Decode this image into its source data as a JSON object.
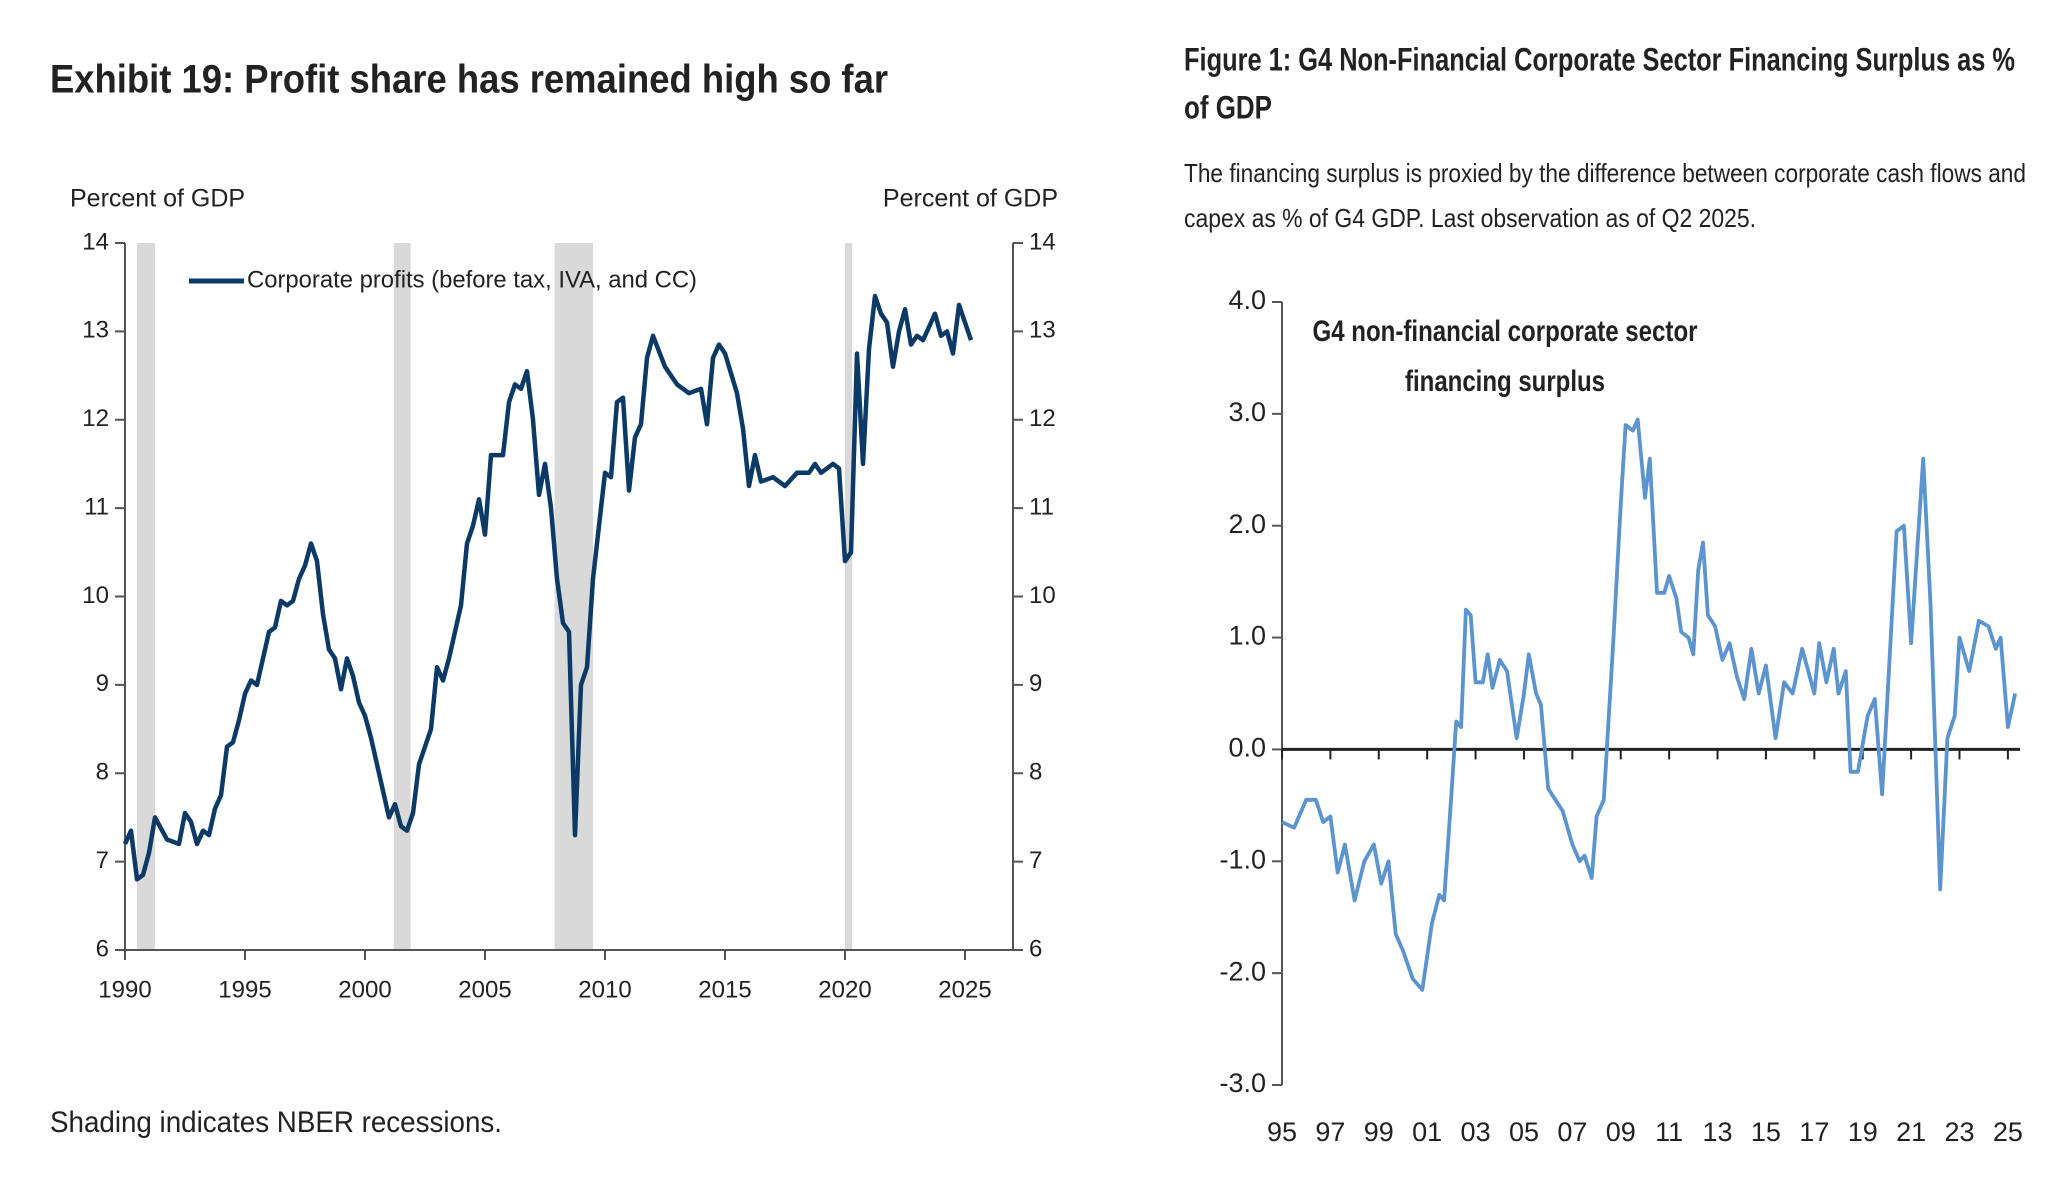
{
  "chart_data": [
    {
      "type": "line",
      "title": "Exhibit 19: Profit share has remained high so far",
      "ylabel": "Percent of GDP",
      "y2label": "Percent of GDP",
      "footnote": "Shading indicates NBER recessions.",
      "xlim": [
        1990,
        2027
      ],
      "xticks": [
        1990,
        1995,
        2000,
        2005,
        2010,
        2015,
        2020,
        2025
      ],
      "ylim": [
        6,
        14
      ],
      "yticks": [
        6,
        7,
        8,
        9,
        10,
        11,
        12,
        13,
        14
      ],
      "recessions": [
        [
          1990.5,
          1991.25
        ],
        [
          2001.2,
          2001.9
        ],
        [
          2007.9,
          2009.5
        ],
        [
          2020.0,
          2020.3
        ]
      ],
      "recession_color": "#d9d9d9",
      "legend": "upper left",
      "series": [
        {
          "name": "Corporate profits (before tax, IVA, and CC)",
          "color": "#0b3a66",
          "x": [
            1990.0,
            1990.25,
            1990.5,
            1990.75,
            1991.0,
            1991.25,
            1991.75,
            1992.25,
            1992.5,
            1992.75,
            1993.0,
            1993.25,
            1993.5,
            1993.75,
            1994.0,
            1994.25,
            1994.5,
            1994.75,
            1995.0,
            1995.25,
            1995.5,
            1995.75,
            1996.0,
            1996.25,
            1996.5,
            1996.75,
            1997.0,
            1997.25,
            1997.5,
            1997.75,
            1998.0,
            1998.25,
            1998.5,
            1998.75,
            1999.0,
            1999.25,
            1999.5,
            1999.75,
            2000.0,
            2000.25,
            2000.5,
            2000.75,
            2001.0,
            2001.25,
            2001.5,
            2001.75,
            2002.0,
            2002.25,
            2002.5,
            2002.75,
            2003.0,
            2003.25,
            2003.5,
            2003.75,
            2004.0,
            2004.25,
            2004.5,
            2004.75,
            2005.0,
            2005.25,
            2005.5,
            2005.75,
            2006.0,
            2006.25,
            2006.5,
            2006.75,
            2007.0,
            2007.25,
            2007.5,
            2007.75,
            2008.0,
            2008.25,
            2008.5,
            2008.75,
            2009.0,
            2009.25,
            2009.5,
            2009.75,
            2010.0,
            2010.25,
            2010.5,
            2010.75,
            2011.0,
            2011.25,
            2011.5,
            2011.75,
            2012.0,
            2012.5,
            2013.0,
            2013.5,
            2014.0,
            2014.25,
            2014.5,
            2014.75,
            2015.0,
            2015.5,
            2015.75,
            2016.0,
            2016.25,
            2016.5,
            2017.0,
            2017.5,
            2018.0,
            2018.5,
            2018.75,
            2019.0,
            2019.5,
            2019.75,
            2020.0,
            2020.25,
            2020.5,
            2020.75,
            2021.0,
            2021.25,
            2021.5,
            2021.75,
            2022.0,
            2022.25,
            2022.5,
            2022.75,
            2023.0,
            2023.25,
            2023.5,
            2023.75,
            2024.0,
            2024.25,
            2024.5,
            2024.75,
            2025.0,
            2025.25
          ],
          "values": [
            7.2,
            7.35,
            6.8,
            6.85,
            7.1,
            7.5,
            7.25,
            7.2,
            7.55,
            7.45,
            7.2,
            7.35,
            7.3,
            7.6,
            7.75,
            8.3,
            8.35,
            8.6,
            8.9,
            9.05,
            9.0,
            9.3,
            9.6,
            9.65,
            9.95,
            9.9,
            9.95,
            10.2,
            10.35,
            10.6,
            10.4,
            9.8,
            9.4,
            9.3,
            8.95,
            9.3,
            9.1,
            8.8,
            8.65,
            8.4,
            8.1,
            7.8,
            7.5,
            7.65,
            7.4,
            7.35,
            7.55,
            8.1,
            8.3,
            8.5,
            9.2,
            9.05,
            9.3,
            9.6,
            9.9,
            10.6,
            10.8,
            11.1,
            10.7,
            11.6,
            11.6,
            11.6,
            12.2,
            12.4,
            12.35,
            12.55,
            12.0,
            11.15,
            11.5,
            11.0,
            10.2,
            9.7,
            9.6,
            7.3,
            9.0,
            9.2,
            10.2,
            10.8,
            11.4,
            11.35,
            12.2,
            12.25,
            11.2,
            11.8,
            11.95,
            12.7,
            12.95,
            12.6,
            12.4,
            12.3,
            12.35,
            11.95,
            12.7,
            12.85,
            12.75,
            12.3,
            11.9,
            11.25,
            11.6,
            11.3,
            11.35,
            11.25,
            11.4,
            11.4,
            11.5,
            11.4,
            11.5,
            11.45,
            10.4,
            10.5,
            12.75,
            11.5,
            12.8,
            13.4,
            13.2,
            13.1,
            12.6,
            13.0,
            13.25,
            12.85,
            12.95,
            12.9,
            13.05,
            13.2,
            12.95,
            13.0,
            12.75,
            13.3,
            13.1,
            12.9
          ]
        }
      ]
    },
    {
      "type": "line",
      "title_lines": [
        "Figure 1: G4 Non-Financial Corporate Sector Financing Surplus as %",
        "of GDP"
      ],
      "subtitle_lines": [
        "The financing surplus is proxied by the difference between corporate cash flows and",
        "capex as % of G4 GDP. Last observation as of Q2 2025."
      ],
      "annotation_lines": [
        "G4 non-financial corporate sector",
        "financing surplus"
      ],
      "xlim": [
        1995,
        2025.5
      ],
      "xticks": [
        {
          "value": 1995,
          "label": "95"
        },
        {
          "value": 1997,
          "label": "97"
        },
        {
          "value": 1999,
          "label": "99"
        },
        {
          "value": 2001,
          "label": "01"
        },
        {
          "value": 2003,
          "label": "03"
        },
        {
          "value": 2005,
          "label": "05"
        },
        {
          "value": 2007,
          "label": "07"
        },
        {
          "value": 2009,
          "label": "09"
        },
        {
          "value": 2011,
          "label": "11"
        },
        {
          "value": 2013,
          "label": "13"
        },
        {
          "value": 2015,
          "label": "15"
        },
        {
          "value": 2017,
          "label": "17"
        },
        {
          "value": 2019,
          "label": "19"
        },
        {
          "value": 2021,
          "label": "21"
        },
        {
          "value": 2023,
          "label": "23"
        },
        {
          "value": 2025,
          "label": "25"
        }
      ],
      "ylim": [
        -3,
        4
      ],
      "yticks": [
        {
          "value": -3,
          "label": "-3.0"
        },
        {
          "value": -2,
          "label": "-2.0"
        },
        {
          "value": -1,
          "label": "-1.0"
        },
        {
          "value": 0,
          "label": "0.0"
        },
        {
          "value": 1,
          "label": "1.0"
        },
        {
          "value": 2,
          "label": "2.0"
        },
        {
          "value": 3,
          "label": "3.0"
        },
        {
          "value": 4,
          "label": "4.0"
        }
      ],
      "title_color": "#4a8ed0",
      "series": [
        {
          "color": "#5b94cf",
          "x": [
            1995.0,
            1995.5,
            1996.0,
            1996.4,
            1996.7,
            1997.0,
            1997.3,
            1997.6,
            1998.0,
            1998.4,
            1998.8,
            1999.1,
            1999.4,
            1999.7,
            2000.0,
            2000.4,
            2000.8,
            2001.2,
            2001.5,
            2001.7,
            2002.0,
            2002.2,
            2002.4,
            2002.6,
            2002.8,
            2003.0,
            2003.3,
            2003.5,
            2003.7,
            2004.0,
            2004.3,
            2004.7,
            2005.0,
            2005.2,
            2005.5,
            2005.7,
            2006.0,
            2006.3,
            2006.6,
            2007.0,
            2007.3,
            2007.5,
            2007.8,
            2008.0,
            2008.3,
            2008.7,
            2009.0,
            2009.2,
            2009.5,
            2009.7,
            2010.0,
            2010.2,
            2010.5,
            2010.8,
            2011.0,
            2011.3,
            2011.5,
            2011.8,
            2012.0,
            2012.2,
            2012.4,
            2012.6,
            2012.9,
            2013.2,
            2013.5,
            2013.8,
            2014.1,
            2014.4,
            2014.7,
            2015.0,
            2015.4,
            2015.75,
            2016.1,
            2016.5,
            2017.0,
            2017.2,
            2017.5,
            2017.8,
            2018.0,
            2018.3,
            2018.5,
            2018.8,
            2019.2,
            2019.5,
            2019.8,
            2020.4,
            2020.7,
            2021.0,
            2021.5,
            2021.8,
            2022.2,
            2022.5,
            2022.8,
            2023.0,
            2023.4,
            2023.8,
            2024.2,
            2024.5,
            2024.7,
            2025.0,
            2025.3
          ],
          "values": [
            -0.65,
            -0.7,
            -0.45,
            -0.45,
            -0.65,
            -0.6,
            -1.1,
            -0.85,
            -1.35,
            -1.0,
            -0.85,
            -1.2,
            -1.0,
            -1.65,
            -1.8,
            -2.05,
            -2.15,
            -1.55,
            -1.3,
            -1.35,
            -0.4,
            0.25,
            0.2,
            1.25,
            1.2,
            0.6,
            0.6,
            0.85,
            0.55,
            0.8,
            0.7,
            0.1,
            0.5,
            0.85,
            0.5,
            0.4,
            -0.35,
            -0.45,
            -0.55,
            -0.85,
            -1.0,
            -0.95,
            -1.15,
            -0.6,
            -0.45,
            1.0,
            2.2,
            2.9,
            2.85,
            2.95,
            2.25,
            2.6,
            1.4,
            1.4,
            1.55,
            1.35,
            1.05,
            1.0,
            0.85,
            1.6,
            1.85,
            1.2,
            1.1,
            0.8,
            0.95,
            0.65,
            0.45,
            0.9,
            0.5,
            0.75,
            0.1,
            0.6,
            0.5,
            0.9,
            0.5,
            0.95,
            0.6,
            0.9,
            0.5,
            0.7,
            -0.2,
            -0.2,
            0.3,
            0.45,
            -0.4,
            1.95,
            2.0,
            0.95,
            2.6,
            1.3,
            -1.25,
            0.1,
            0.3,
            1.0,
            0.7,
            1.15,
            1.1,
            0.9,
            1.0,
            0.2,
            0.5
          ]
        }
      ]
    }
  ]
}
